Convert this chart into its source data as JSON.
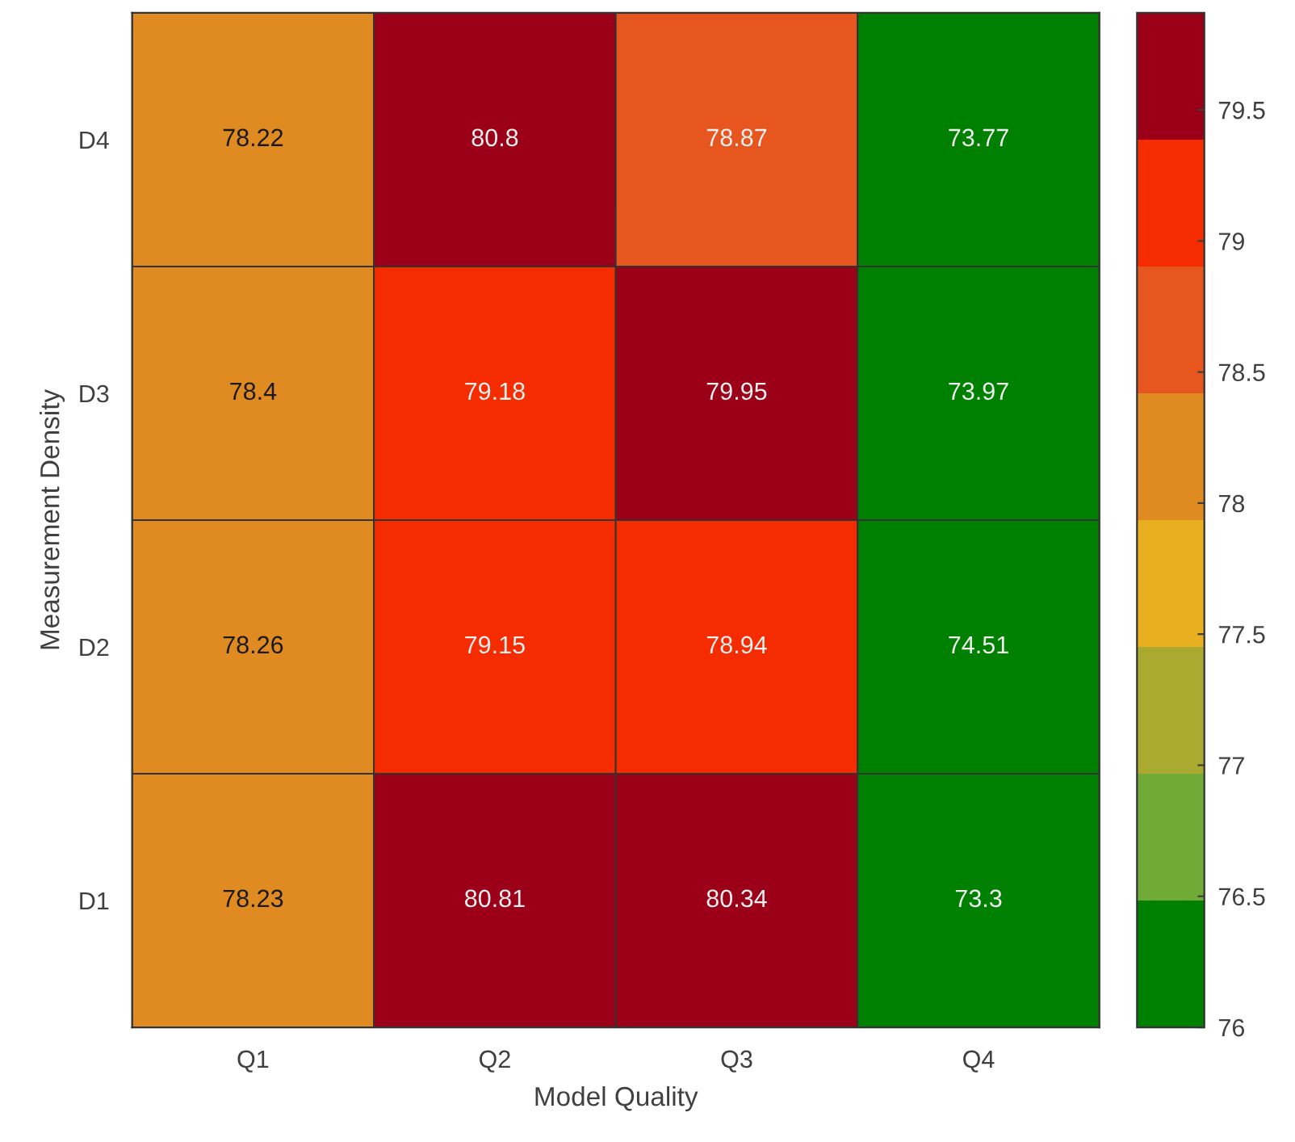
{
  "chart_data": {
    "type": "heatmap",
    "xlabel": "Model Quality",
    "ylabel": "Measurement Density",
    "categories": [
      "Q1",
      "Q2",
      "Q3",
      "Q4"
    ],
    "y_categories": [
      "D4",
      "D3",
      "D2",
      "D1"
    ],
    "cells": [
      [
        78.22,
        80.8,
        78.87,
        73.77
      ],
      [
        78.4,
        79.18,
        79.95,
        73.97
      ],
      [
        78.26,
        79.15,
        78.94,
        74.51
      ],
      [
        78.23,
        80.81,
        80.34,
        73.3
      ]
    ],
    "data_labels": true,
    "clim": [
      76,
      79.87
    ],
    "cticks": [
      76,
      76.5,
      77,
      77.5,
      78,
      78.5,
      79,
      79.5
    ]
  }
}
